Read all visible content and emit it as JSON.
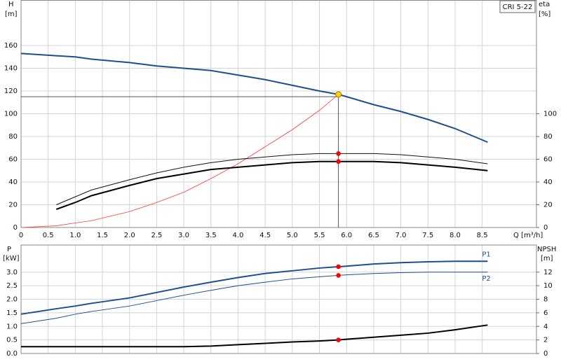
{
  "chart_data": [
    {
      "type": "line",
      "legend_text": "CRI 5-22",
      "y_label": "H",
      "y_unit": "[m]",
      "y2_label": "eta",
      "y2_unit": "[%]",
      "x_label": "Q [m³/h]",
      "xlim": [
        0,
        9.5
      ],
      "xticks": [
        0,
        0.5,
        {
          "value": 1,
          "label": "1.0"
        },
        1.5,
        {
          "value": 2,
          "label": "2.0"
        },
        2.5,
        {
          "value": 3,
          "label": "3.0"
        },
        3.5,
        {
          "value": 4,
          "label": "4.0"
        },
        4.5,
        {
          "value": 5,
          "label": "5.0"
        },
        5.5,
        {
          "value": 6,
          "label": "6.0"
        },
        6.5,
        {
          "value": 7,
          "label": "7.0"
        },
        7.5,
        {
          "value": 8,
          "label": "8.0"
        },
        8.5
      ],
      "ylim": [
        0,
        200
      ],
      "yticks": [
        0,
        20,
        40,
        60,
        80,
        100,
        120,
        140,
        160
      ],
      "y2lim": [
        0,
        200
      ],
      "y2ticks": [
        0,
        20,
        40,
        60,
        80,
        100
      ],
      "grid": true,
      "x": [
        0,
        0.65,
        1,
        1.3,
        2,
        2.5,
        3,
        3.5,
        4,
        4.5,
        5,
        5.5,
        5.85,
        6,
        6.5,
        7,
        7.5,
        8,
        8.6
      ],
      "series": [
        {
          "color": "#1f4e8c",
          "linewidth": 2,
          "values": [
            153,
            151,
            150,
            148,
            145,
            142,
            140,
            138,
            134,
            130,
            125,
            120,
            117,
            115,
            108,
            102,
            95,
            87,
            75
          ]
        },
        {
          "color": "#ff3b3b",
          "linewidth": 0.8,
          "values": [
            0,
            1.5,
            4,
            6,
            14,
            22,
            31,
            43,
            56,
            71,
            86,
            103,
            117,
            null,
            null,
            null,
            null,
            null,
            null
          ]
        },
        {
          "color": "#111111",
          "linewidth": 1,
          "axis": "y2",
          "values": [
            null,
            20,
            27,
            33,
            42,
            48,
            53,
            57,
            60,
            62,
            64,
            65,
            65,
            65,
            65,
            64,
            62,
            60,
            56
          ]
        },
        {
          "color": "#000000",
          "linewidth": 2,
          "axis": "y2",
          "values": [
            null,
            16,
            22,
            28,
            37,
            43,
            47,
            51,
            53,
            55,
            57,
            58,
            58,
            58,
            58,
            57,
            55,
            53,
            50
          ]
        }
      ],
      "crosshair": {
        "x": 5.85,
        "y": 115
      },
      "points": [
        {
          "x": 5.85,
          "y": 117,
          "color": "#ffd800"
        },
        {
          "x": 5.85,
          "y": 65,
          "color": "#ff0000",
          "axis": "y2"
        },
        {
          "x": 5.85,
          "y": 58,
          "color": "#ff0000",
          "axis": "y2"
        }
      ]
    },
    {
      "type": "line",
      "y_label": "P",
      "y_unit": "[kW]",
      "y2_label": "NPSH",
      "y2_unit": "[m]",
      "xlim": [
        0,
        9.5
      ],
      "ylim": [
        0,
        4
      ],
      "yticks": [
        {
          "value": 0,
          "label": "0.0"
        },
        0.5,
        {
          "value": 1,
          "label": "1.0"
        },
        1.5,
        {
          "value": 2,
          "label": "2.0"
        },
        2.5,
        {
          "value": 3,
          "label": "3.0"
        }
      ],
      "y2lim": [
        0,
        16
      ],
      "y2ticks": [
        0,
        2,
        4,
        6,
        8,
        10,
        12
      ],
      "grid": true,
      "x": [
        0,
        0.65,
        1,
        1.3,
        2,
        2.5,
        3,
        3.5,
        4,
        4.5,
        5,
        5.5,
        5.85,
        6,
        6.5,
        7,
        7.5,
        8,
        8.6
      ],
      "series": [
        {
          "name": "P1",
          "color": "#1f4e8c",
          "linewidth": 2,
          "values": [
            1.45,
            1.65,
            1.75,
            1.85,
            2.05,
            2.25,
            2.45,
            2.63,
            2.8,
            2.95,
            3.05,
            3.15,
            3.2,
            3.22,
            3.3,
            3.35,
            3.38,
            3.4,
            3.4
          ]
        },
        {
          "name": "P2",
          "color": "#1f4e8c",
          "linewidth": 1,
          "values": [
            1.1,
            1.3,
            1.45,
            1.55,
            1.75,
            1.95,
            2.15,
            2.33,
            2.5,
            2.63,
            2.75,
            2.83,
            2.88,
            2.9,
            2.95,
            2.98,
            3.0,
            3.0,
            3.0
          ]
        },
        {
          "color": "#000000",
          "linewidth": 2,
          "axis": "y2",
          "values": [
            1.0,
            1.0,
            1.0,
            1.0,
            1.0,
            1.0,
            1.0,
            1.1,
            1.3,
            1.5,
            1.7,
            1.85,
            2.0,
            2.1,
            2.4,
            2.7,
            3.0,
            3.5,
            4.2
          ]
        }
      ],
      "points": [
        {
          "x": 5.85,
          "y": 3.2,
          "color": "#ff0000"
        },
        {
          "x": 5.85,
          "y": 2.88,
          "color": "#ff0000"
        },
        {
          "x": 5.85,
          "y": 2.0,
          "color": "#ff0000",
          "axis": "y2"
        }
      ]
    }
  ]
}
